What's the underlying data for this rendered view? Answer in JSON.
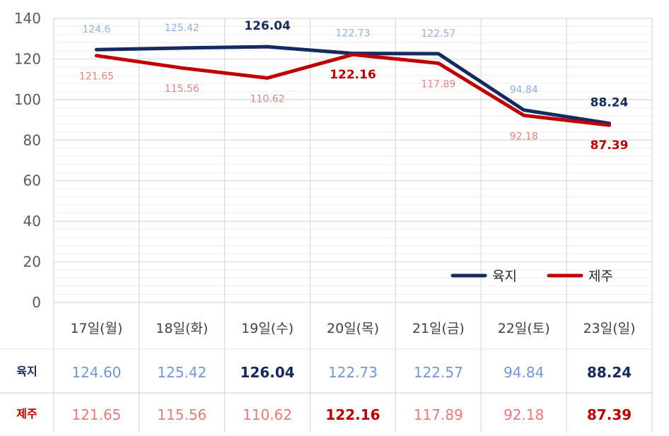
{
  "chart_data": {
    "type": "line",
    "categories": [
      "17일(월)",
      "18일(화)",
      "19일(수)",
      "20일(목)",
      "21일(금)",
      "22일(토)",
      "23일(일)"
    ],
    "ylim": [
      0,
      140
    ],
    "yticks": [
      0,
      20,
      40,
      60,
      80,
      100,
      120,
      140
    ],
    "grid": true,
    "legend": "bottom-right",
    "series": [
      {
        "name": "육지",
        "values": [
          124.6,
          125.42,
          126.04,
          122.73,
          122.57,
          94.84,
          88.24
        ],
        "labels": [
          "124.6",
          "125.42",
          "126.04",
          "122.73",
          "122.57",
          "94.84",
          "88.24"
        ],
        "table_values": [
          "124.60",
          "125.42",
          "126.04",
          "122.73",
          "122.57",
          "94.84",
          "88.24"
        ],
        "bold": [
          false,
          false,
          true,
          false,
          false,
          false,
          true
        ],
        "color": "#152a5e",
        "label_color": "#8eb1e6",
        "table_color": "#6f98dc"
      },
      {
        "name": "제주",
        "values": [
          121.65,
          115.56,
          110.62,
          122.16,
          117.89,
          92.18,
          87.39
        ],
        "labels": [
          "121.65",
          "115.56",
          "110.62",
          "122.16",
          "117.89",
          "92.18",
          "87.39"
        ],
        "table_values": [
          "121.65",
          "115.56",
          "110.62",
          "122.16",
          "117.89",
          "92.18",
          "87.39"
        ],
        "bold": [
          false,
          false,
          false,
          true,
          false,
          false,
          true
        ],
        "color": "#c00000",
        "label_color": "#ef8080",
        "table_color": "#ee7878"
      }
    ]
  }
}
